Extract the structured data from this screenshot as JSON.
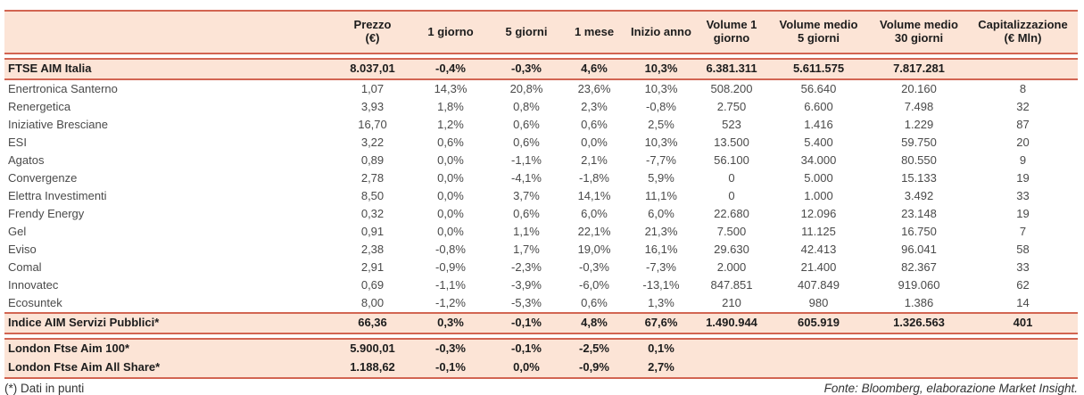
{
  "colors": {
    "band_bg": "#FCE4D6",
    "line": "#D26552",
    "body_text": "#4a4a4a",
    "bold_text": "#1c1c1c"
  },
  "table": {
    "columns": [
      {
        "label": ""
      },
      {
        "label": "Prezzo\n(€)"
      },
      {
        "label": "1 giorno"
      },
      {
        "label": "5 giorni"
      },
      {
        "label": "1 mese"
      },
      {
        "label": "Inizio anno"
      },
      {
        "label": "Volume 1\ngiorno"
      },
      {
        "label": "Volume medio\n5 giorni"
      },
      {
        "label": "Volume medio\n30 giorni"
      },
      {
        "label": "Capitalizzazione\n(€ Mln)"
      }
    ],
    "index_row": {
      "name": "FTSE AIM Italia",
      "values": [
        "8.037,01",
        "-0,4%",
        "-0,3%",
        "4,6%",
        "10,3%",
        "6.381.311",
        "5.611.575",
        "7.817.281",
        ""
      ]
    },
    "stock_rows": [
      {
        "name": "Enertronica Santerno",
        "values": [
          "1,07",
          "14,3%",
          "20,8%",
          "23,6%",
          "10,3%",
          "508.200",
          "56.640",
          "20.160",
          "8"
        ]
      },
      {
        "name": "Renergetica",
        "values": [
          "3,93",
          "1,8%",
          "0,8%",
          "2,3%",
          "-0,8%",
          "2.750",
          "6.600",
          "7.498",
          "32"
        ]
      },
      {
        "name": "Iniziative Bresciane",
        "values": [
          "16,70",
          "1,2%",
          "0,6%",
          "0,6%",
          "2,5%",
          "523",
          "1.416",
          "1.229",
          "87"
        ]
      },
      {
        "name": "ESI",
        "values": [
          "3,22",
          "0,6%",
          "0,6%",
          "0,0%",
          "10,3%",
          "13.500",
          "5.400",
          "59.750",
          "20"
        ]
      },
      {
        "name": "Agatos",
        "values": [
          "0,89",
          "0,0%",
          "-1,1%",
          "2,1%",
          "-7,7%",
          "56.100",
          "34.000",
          "80.550",
          "9"
        ]
      },
      {
        "name": "Convergenze",
        "values": [
          "2,78",
          "0,0%",
          "-4,1%",
          "-1,8%",
          "5,9%",
          "0",
          "5.000",
          "15.133",
          "19"
        ]
      },
      {
        "name": "Elettra Investimenti",
        "values": [
          "8,50",
          "0,0%",
          "3,7%",
          "14,1%",
          "11,1%",
          "0",
          "1.000",
          "3.492",
          "33"
        ]
      },
      {
        "name": "Frendy Energy",
        "values": [
          "0,32",
          "0,0%",
          "0,6%",
          "6,0%",
          "6,0%",
          "22.680",
          "12.096",
          "23.148",
          "19"
        ]
      },
      {
        "name": "Gel",
        "values": [
          "0,91",
          "0,0%",
          "1,1%",
          "22,1%",
          "21,3%",
          "7.500",
          "11.125",
          "16.750",
          "7"
        ]
      },
      {
        "name": "Eviso",
        "values": [
          "2,38",
          "-0,8%",
          "1,7%",
          "19,0%",
          "16,1%",
          "29.630",
          "42.413",
          "96.041",
          "58"
        ]
      },
      {
        "name": "Comal",
        "values": [
          "2,91",
          "-0,9%",
          "-2,3%",
          "-0,3%",
          "-7,3%",
          "2.000",
          "21.400",
          "82.367",
          "33"
        ]
      },
      {
        "name": "Innovatec",
        "values": [
          "0,69",
          "-1,1%",
          "-3,9%",
          "-6,0%",
          "-13,1%",
          "847.851",
          "407.849",
          "919.060",
          "62"
        ]
      },
      {
        "name": "Ecosuntek",
        "values": [
          "8,00",
          "-1,2%",
          "-5,3%",
          "0,6%",
          "1,3%",
          "210",
          "980",
          "1.386",
          "14"
        ]
      }
    ],
    "subindex_row": {
      "name": "Indice AIM Servizi Pubblici*",
      "values": [
        "66,36",
        "0,3%",
        "-0,1%",
        "4,8%",
        "67,6%",
        "1.490.944",
        "605.919",
        "1.326.563",
        "401"
      ]
    },
    "london_rows": [
      {
        "name": "London Ftse Aim 100*",
        "values": [
          "5.900,01",
          "-0,3%",
          "-0,1%",
          "-2,5%",
          "0,1%",
          "",
          "",
          "",
          ""
        ]
      },
      {
        "name": "London Ftse Aim All Share*",
        "values": [
          "1.188,62",
          "-0,1%",
          "0,0%",
          "-0,9%",
          "2,7%",
          "",
          "",
          "",
          ""
        ]
      }
    ]
  },
  "footer": {
    "note": "(*) Dati in punti",
    "source": "Fonte: Bloomberg, elaborazione Market Insight."
  }
}
